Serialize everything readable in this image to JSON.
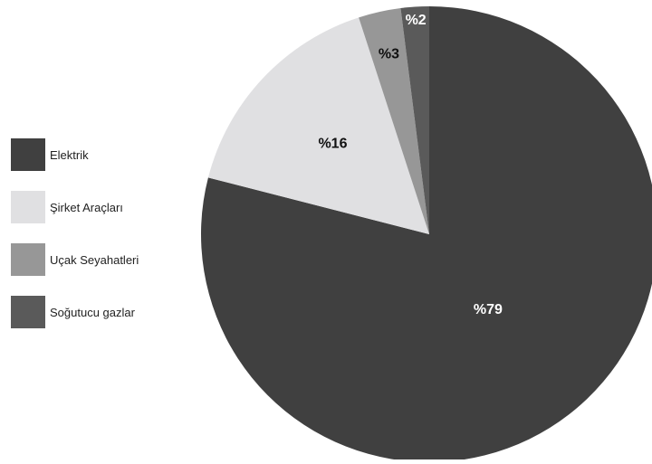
{
  "chart_data": {
    "type": "pie",
    "title": "",
    "legend_position": "left",
    "start_angle_deg": 0,
    "direction": "clockwise",
    "slices": [
      {
        "name": "Elektrik",
        "value": 79,
        "label": "%79",
        "color": "#404040",
        "label_color": "#ffffff"
      },
      {
        "name": "Şirket Araçları",
        "value": 16,
        "label": "%16",
        "color": "#e0e0e2",
        "label_color": "#111111"
      },
      {
        "name": "Uçak Seyahatleri",
        "value": 3,
        "label": "%3",
        "color": "#979797",
        "label_color": "#111111"
      },
      {
        "name": "Soğutucu gazlar",
        "value": 2,
        "label": "%2",
        "color": "#5a5a5a",
        "label_color": "#ffffff"
      }
    ]
  }
}
